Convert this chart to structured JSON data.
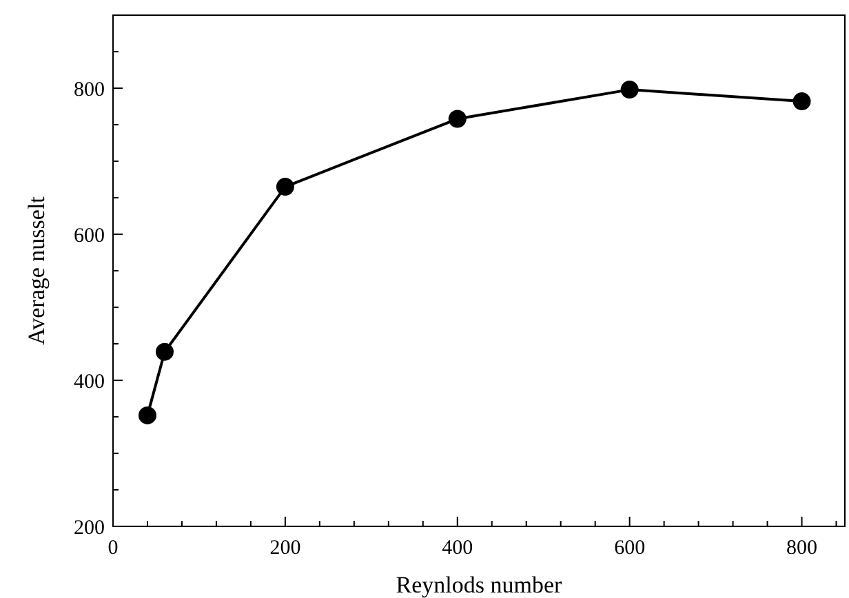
{
  "chart_data": {
    "type": "line",
    "xlabel": "Reynlods number",
    "ylabel": "Average nusselt",
    "x": [
      40,
      60,
      200,
      400,
      600,
      800
    ],
    "series": [
      {
        "color": "#000000",
        "values": [
          352,
          439,
          665,
          758,
          798,
          782
        ]
      }
    ],
    "xlim": [
      0,
      850
    ],
    "ylim": [
      200,
      900
    ],
    "xticks": [
      0,
      {
        "value": 40,
        "label": null
      },
      {
        "value": 80,
        "label": null
      },
      {
        "value": 120,
        "label": null
      },
      {
        "value": 160,
        "label": null
      },
      200,
      {
        "value": 240,
        "label": null
      },
      {
        "value": 280,
        "label": null
      },
      {
        "value": 320,
        "label": null
      },
      {
        "value": 360,
        "label": null
      },
      400,
      {
        "value": 440,
        "label": null
      },
      {
        "value": 480,
        "label": null
      },
      {
        "value": 520,
        "label": null
      },
      {
        "value": 560,
        "label": null
      },
      600,
      {
        "value": 640,
        "label": null
      },
      {
        "value": 680,
        "label": null
      },
      {
        "value": 720,
        "label": null
      },
      {
        "value": 760,
        "label": null
      },
      800,
      {
        "value": 840,
        "label": null
      }
    ],
    "yticks": [
      200,
      {
        "value": 250,
        "label": null
      },
      {
        "value": 300,
        "label": null
      },
      {
        "value": 350,
        "label": null
      },
      400,
      {
        "value": 450,
        "label": null
      },
      {
        "value": 500,
        "label": null
      },
      {
        "value": 550,
        "label": null
      },
      600,
      {
        "value": 650,
        "label": null
      },
      {
        "value": 700,
        "label": null
      },
      {
        "value": 750,
        "label": null
      },
      800,
      {
        "value": 850,
        "label": null
      }
    ],
    "marker": "circle",
    "line_style": "solid",
    "grid": false
  }
}
